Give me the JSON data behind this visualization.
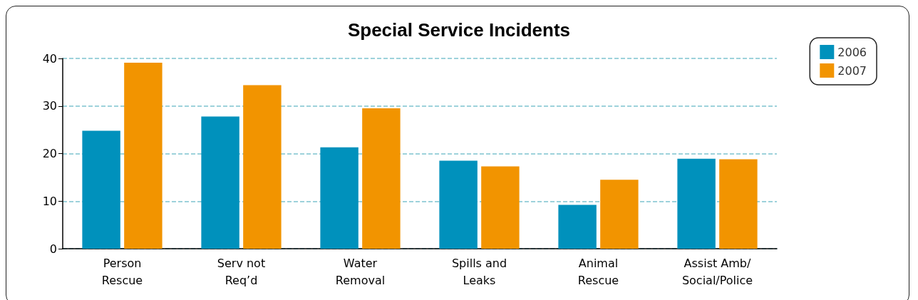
{
  "chart_data": {
    "type": "bar",
    "title": "Special Service Incidents",
    "categories": [
      "Person\nRescue",
      "Serv not\nReq’d",
      "Water\nRemoval",
      "Spills and\nLeaks",
      "Animal\nRescue",
      "Assist Amb/\nSocial/Police"
    ],
    "series": [
      {
        "name": "2006",
        "color": "#0091bc",
        "values": [
          24.8,
          27.8,
          21.3,
          18.5,
          9.2,
          18.9
        ]
      },
      {
        "name": "2007",
        "color": "#f29400",
        "values": [
          39.1,
          34.4,
          29.5,
          17.3,
          14.5,
          18.8
        ]
      }
    ],
    "ylim": [
      0,
      40
    ],
    "yticks": [
      0,
      10,
      20,
      30,
      40
    ],
    "grid": "y",
    "legend": "top right"
  }
}
